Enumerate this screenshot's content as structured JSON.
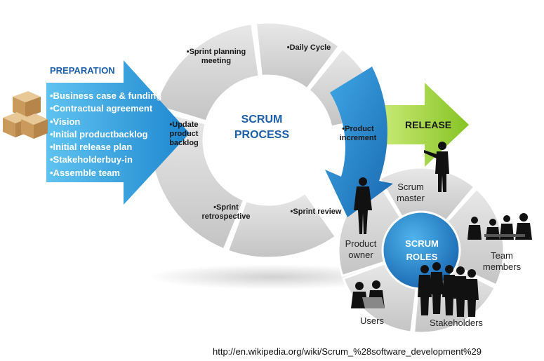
{
  "preparation": {
    "title": "PREPARATION",
    "items": [
      "•Business case & funding",
      "•Contractual agreement",
      "•Vision",
      "•Initial productbacklog",
      "•Initial release plan",
      "•Stakeholderbuy-in",
      "•Assemble team"
    ]
  },
  "process": {
    "title_line1": "SCRUM",
    "title_line2": "PROCESS",
    "steps": {
      "sprint_planning_1": "•Sprint planning",
      "sprint_planning_2": "meeting",
      "daily_cycle": "•Daily Cycle",
      "product_increment_1": "•Product",
      "product_increment_2": "increment",
      "sprint_review": "•Sprint review",
      "sprint_retro_1": "•Sprint",
      "sprint_retro_2": "retrospective",
      "update_backlog_1": "•Update",
      "update_backlog_2": "product",
      "update_backlog_3": "backlog"
    }
  },
  "release": {
    "label": "RELEASE"
  },
  "roles": {
    "title_line1": "SCRUM",
    "title_line2": "ROLES",
    "scrum_master_1": "Scrum",
    "scrum_master_2": "master",
    "team_members_1": "Team",
    "team_members_2": "members",
    "stakeholders": "Stakeholders",
    "users": "Users",
    "product_owner_1": "Product",
    "product_owner_2": "owner"
  },
  "source_url": "http://en.wikipedia.org/wiki/Scrum_%28software_development%29",
  "colors": {
    "segment_gray": "#d9d9d9",
    "accent_blue": "#2a8fd4",
    "release_green": "#9fd23c",
    "box_tan": "#d9b27c"
  }
}
